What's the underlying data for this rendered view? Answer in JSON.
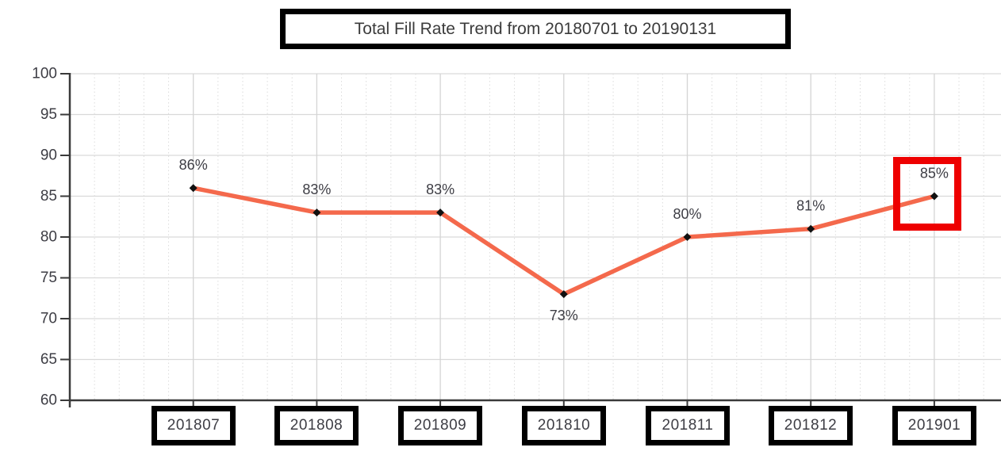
{
  "chart_data": {
    "type": "line",
    "title": "Total Fill Rate Trend from 20180701 to 20190131",
    "categories": [
      "201807",
      "201808",
      "201809",
      "201810",
      "201811",
      "201812",
      "201901"
    ],
    "series": [
      {
        "name": "Total Fill Rate",
        "values": [
          86,
          83,
          83,
          73,
          80,
          81,
          85
        ]
      }
    ],
    "data_labels": [
      "86%",
      "83%",
      "83%",
      "73%",
      "80%",
      "81%",
      "85%"
    ],
    "data_label_placement": [
      "above",
      "above",
      "above",
      "below",
      "above",
      "above",
      "above"
    ],
    "y_ticks": [
      100,
      95,
      90,
      85,
      80,
      75,
      70,
      65,
      60
    ],
    "ylim": [
      60,
      100
    ],
    "xlabel": "",
    "ylabel": "",
    "legend": "none",
    "grid": {
      "horizontal_major": "solid",
      "vertical_major": "solid",
      "vertical_minor": "dotted",
      "minor_divisions": 5
    },
    "annotations": {
      "highlight_box": {
        "category": "201901",
        "value_label": "85%"
      }
    },
    "colors": {
      "line": "#f4694c",
      "marker": "#111111",
      "grid": "#d9d9d9",
      "axis": "#3a3a3a",
      "text": "#3d3d44",
      "box_border": "#000000",
      "highlight": "#ee0000",
      "background": "#ffffff"
    }
  }
}
